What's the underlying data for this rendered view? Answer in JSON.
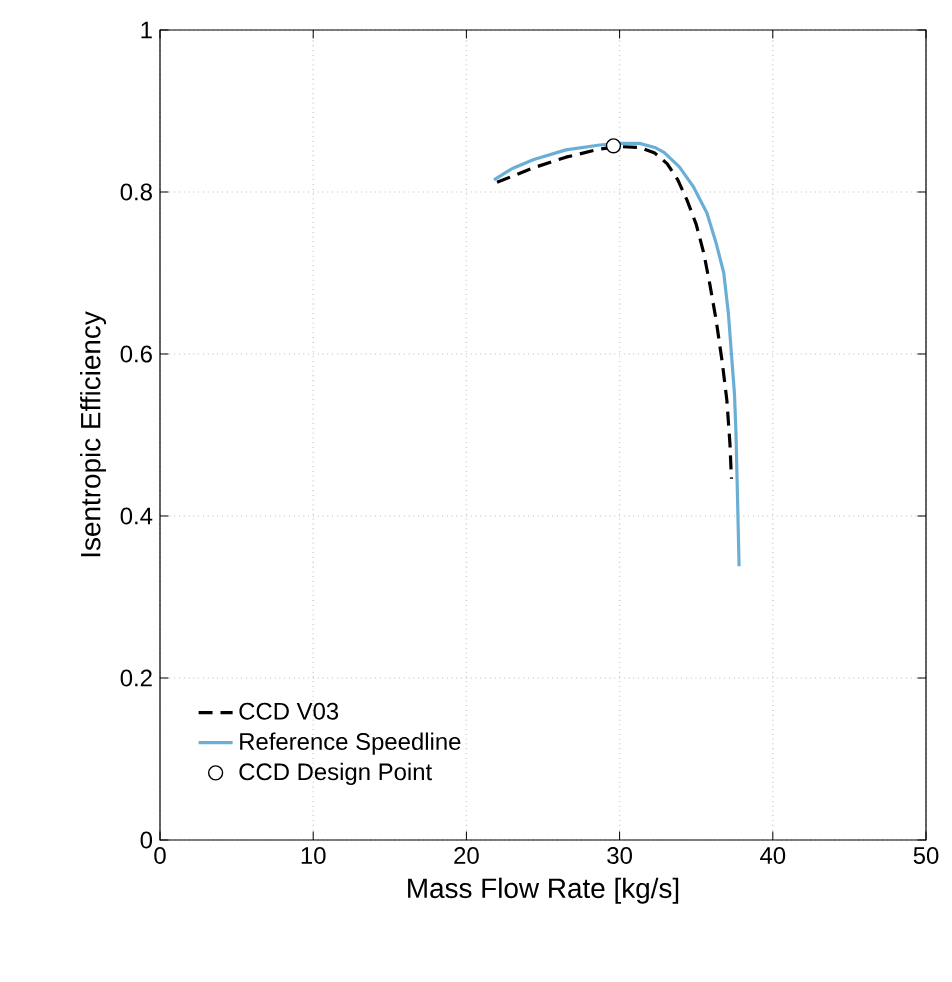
{
  "chart_data": {
    "type": "line",
    "xlabel": "Mass Flow Rate [kg/s]",
    "ylabel": "Isentropic Efficiency",
    "xlim": [
      0,
      50
    ],
    "xticks": [
      0,
      10,
      20,
      30,
      40,
      50
    ],
    "ylim": [
      0,
      1
    ],
    "yticks": [
      0,
      0.2,
      0.4,
      0.6,
      0.8,
      1
    ],
    "grid": true,
    "legend": "bottom left",
    "series": [
      {
        "name": "CCD V03",
        "color": "#000000",
        "line_style": "dashed",
        "marker": "none",
        "x": [
          22.0,
          24.4,
          26.5,
          28.7,
          30.0,
          31.3,
          32.3,
          33.1,
          33.8,
          34.4,
          35.0,
          35.5,
          35.9,
          36.3,
          36.7,
          37.0,
          37.2,
          37.3
        ],
        "values": [
          0.812,
          0.83,
          0.843,
          0.853,
          0.856,
          0.855,
          0.848,
          0.835,
          0.815,
          0.79,
          0.76,
          0.724,
          0.685,
          0.642,
          0.59,
          0.543,
          0.49,
          0.446
        ]
      },
      {
        "name": "Reference Speedline",
        "color": "#6aaed6",
        "line_style": "solid",
        "marker": "none",
        "x": [
          21.8,
          23.0,
          24.4,
          26.5,
          28.7,
          30.0,
          31.3,
          32.3,
          32.9,
          33.9,
          34.8,
          35.7,
          36.3,
          36.8,
          37.1,
          37.3,
          37.5,
          37.6,
          37.7,
          37.8
        ],
        "values": [
          0.815,
          0.829,
          0.84,
          0.852,
          0.858,
          0.86,
          0.86,
          0.855,
          0.849,
          0.831,
          0.807,
          0.774,
          0.737,
          0.7,
          0.65,
          0.6,
          0.55,
          0.5,
          0.42,
          0.338
        ]
      },
      {
        "name": "CCD Design Point",
        "type": "scatter",
        "color": "#000000",
        "marker": "circle",
        "x": [
          29.6
        ],
        "values": [
          0.857
        ]
      }
    ]
  }
}
